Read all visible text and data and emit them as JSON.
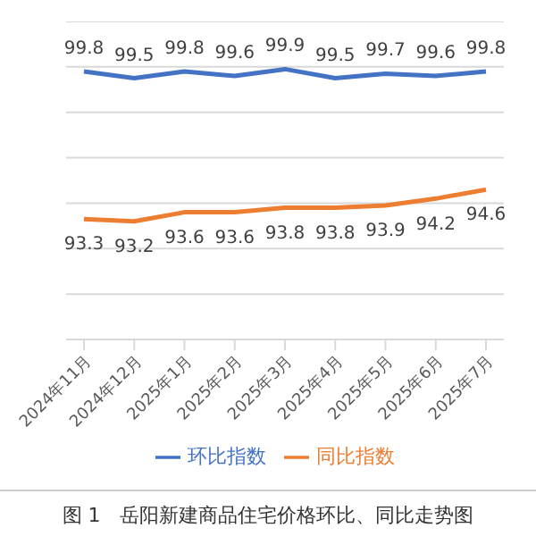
{
  "chart_data": {
    "type": "line",
    "title": "图 1　岳阳新建商品住宅价格环比、同比走势图",
    "categories": [
      "2024年11月",
      "2024年12月",
      "2025年1月",
      "2025年2月",
      "2025年3月",
      "2025年4月",
      "2025年5月",
      "2025年6月",
      "2025年7月"
    ],
    "series": [
      {
        "name": "环比指数",
        "color": "#4472c4",
        "values": [
          99.8,
          99.5,
          99.8,
          99.6,
          99.9,
          99.5,
          99.7,
          99.6,
          99.8
        ]
      },
      {
        "name": "同比指数",
        "color": "#ed7d31",
        "values": [
          93.3,
          93.2,
          93.6,
          93.6,
          93.8,
          93.8,
          93.9,
          94.2,
          94.6
        ]
      }
    ],
    "ylim": [
      88,
      102
    ],
    "yticks": [
      {
        "value": 88,
        "label": null
      },
      {
        "value": 90,
        "label": null
      },
      {
        "value": 92,
        "label": null
      },
      {
        "value": 94,
        "label": null
      },
      {
        "value": 96,
        "label": null
      },
      {
        "value": 98,
        "label": null
      },
      {
        "value": 100,
        "label": null
      },
      {
        "value": 102,
        "label": null
      }
    ],
    "tick_labels": "x",
    "grid": "y",
    "legend": "bottom",
    "data_labels": true,
    "marker": "none",
    "line_style": "solid"
  }
}
